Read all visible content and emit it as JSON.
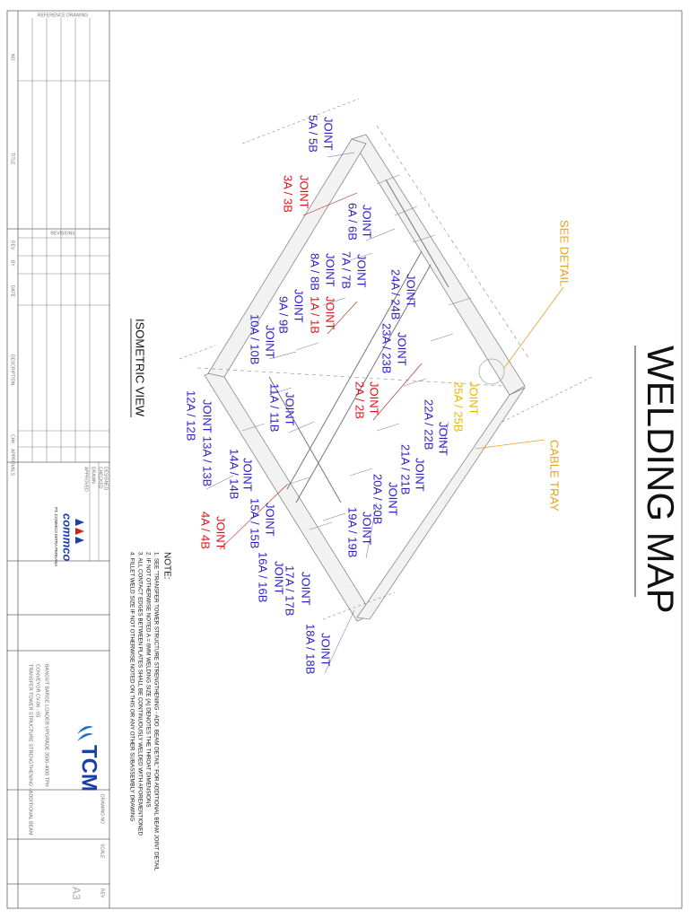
{
  "title": "WELDING MAP",
  "view_title": "ISOMETRIC VIEW",
  "callouts": {
    "see_detail": "SEE DETAIL",
    "cable_tray": "CABLE TRAY"
  },
  "joints": [
    {
      "lines": [
        "JOINT",
        "5A / 5B"
      ],
      "color": "#2a1ec8"
    },
    {
      "lines": [
        "JOINT",
        "3A / 3B"
      ],
      "color": "#e0101a"
    },
    {
      "lines": [
        "JOINT",
        "6A / 6B"
      ],
      "color": "#2a1ec8"
    },
    {
      "lines": [
        "JOINT",
        "7A / 7B"
      ],
      "color": "#2a1ec8"
    },
    {
      "lines": [
        "JOINT",
        "8A / 8B"
      ],
      "color": "#2a1ec8"
    },
    {
      "lines": [
        "JOINT",
        "1A / 1B"
      ],
      "color": "#e0101a"
    },
    {
      "lines": [
        "JOINT",
        "9A / 9B"
      ],
      "color": "#2a1ec8"
    },
    {
      "lines": [
        "JOINT",
        "10A / 10B"
      ],
      "color": "#2a1ec8"
    },
    {
      "lines": [
        "JOINT",
        "24A / 24B"
      ],
      "color": "#2a1ec8"
    },
    {
      "lines": [
        "JOINT",
        "23A / 23B"
      ],
      "color": "#2a1ec8"
    },
    {
      "lines": [
        "JOINT",
        "2A / 2B"
      ],
      "color": "#e0101a"
    },
    {
      "lines": [
        "JOINT",
        "11A / 11B"
      ],
      "color": "#2a1ec8"
    },
    {
      "lines": [
        "JOINT",
        "25A / 25B"
      ],
      "color": "#e8b800"
    },
    {
      "lines": [
        "JOINT",
        "22A / 22B"
      ],
      "color": "#2a1ec8"
    },
    {
      "lines": [
        "JOINT",
        "21A / 21B"
      ],
      "color": "#2a1ec8"
    },
    {
      "lines": [
        "JOINT",
        "20A / 20B"
      ],
      "color": "#2a1ec8"
    },
    {
      "lines": [
        "JOINT",
        "19A / 19B"
      ],
      "color": "#2a1ec8"
    },
    {
      "lines": [
        "12A / 12B"
      ],
      "color": "#2a1ec8"
    },
    {
      "lines": [
        "JOINT 13A / 13B"
      ],
      "color": "#2a1ec8"
    },
    {
      "lines": [
        "JOINT",
        "14A / 14B"
      ],
      "color": "#2a1ec8"
    },
    {
      "lines": [
        "JOINT",
        "15A / 15B"
      ],
      "color": "#2a1ec8"
    },
    {
      "lines": [
        "JOINT",
        "4A / 4B"
      ],
      "color": "#e0101a"
    },
    {
      "lines": [
        "JOINT",
        "16A / 16B"
      ],
      "color": "#2a1ec8"
    },
    {
      "lines": [
        "JOINT",
        "17A / 17B"
      ],
      "color": "#2a1ec8"
    },
    {
      "lines": [
        "JOINT",
        "18A / 18B"
      ],
      "color": "#2a1ec8"
    }
  ],
  "notes": {
    "heading": "NOTE:",
    "items": [
      "1.  SEE \"TRANSFER TOWER STRUCTURE STRENGTHENING - ADD. BEAM DETAIL\" FOR ADDITIONAL BEAM JOINT DETAIL",
      "2.  IF NOT OTHERWISE NOTED A = 6MM WELDING SIZE (A) DENOTES THE THROAT DIMENSIONS",
      "3.  ALL CONTACT EDGES BETWEEN PLATES SHALL BE CONTINUOUSLY WELDED WITH AFOREMENTIONED",
      "4.  FILLET WELD SIZE IF NOT OTHERWISE NOTED ON THIS OR ANY OTHER SUBASSEMBLY DRAWING"
    ]
  },
  "title_block": {
    "reference_drawing": "REFERENCE DRAWING",
    "no": "NO",
    "title": "TITLE",
    "revisions": "REVISIONS",
    "rev_headers": [
      "REV",
      "BY",
      "DATE",
      "DESCRIPTION",
      "CHK",
      "APPROVALS"
    ],
    "approvals": [
      "DRAWN",
      "CHECKED",
      "DESIGNED",
      "APPROVED"
    ],
    "company_logo": "commco",
    "company": "PT. COMMCO MITRA PERKASA",
    "client": "TCM",
    "project": [
      "BANGUT BARGE LOADER UPGRADE 3500-4000 TPH",
      "CONVEYOR CV-06 - 05",
      "TRANSFER TOWER STRUCTURE STRENGTHENING - ADDITIONAL BEAM"
    ],
    "drawing_no": "DRAWING NO",
    "size": "A3",
    "scale": "SCALE",
    "rev": "REV"
  }
}
